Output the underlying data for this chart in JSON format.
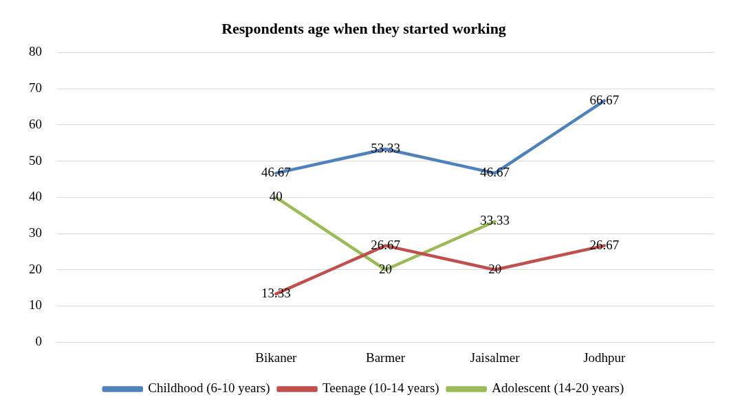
{
  "chart_data": {
    "type": "line",
    "title": "Respondents age when they started working",
    "categories": [
      null,
      null,
      "Bikaner",
      "Barmer",
      "Jaisalmer",
      "Jodhpur",
      null
    ],
    "series": [
      {
        "name": "Childhood (6-10 years)",
        "color": "#4f81bd",
        "values": [
          null,
          null,
          46.67,
          53.33,
          46.67,
          66.67,
          null
        ]
      },
      {
        "name": "Teenage (10-14 years)",
        "color": "#c0504d",
        "values": [
          null,
          null,
          13.33,
          26.67,
          20,
          26.67,
          null
        ]
      },
      {
        "name": "Adolescent (14-20 years)",
        "color": "#9bbb59",
        "values": [
          null,
          null,
          40,
          20,
          33.33,
          null,
          null
        ]
      }
    ],
    "ylim": [
      0,
      80
    ],
    "yticks": [
      0,
      10,
      20,
      30,
      40,
      50,
      60,
      70,
      80
    ],
    "grid": "y",
    "legend": "bottom",
    "marker": "none",
    "data_labels": true
  }
}
